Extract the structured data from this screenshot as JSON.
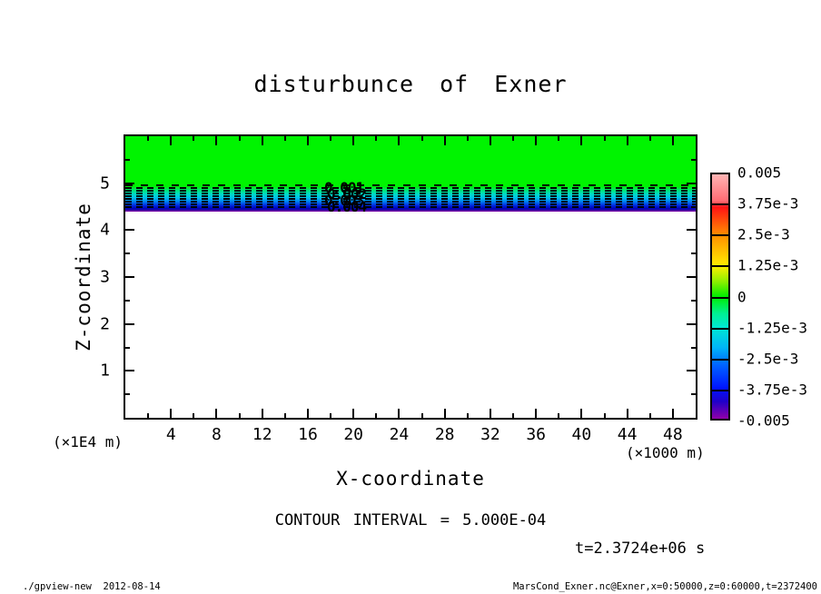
{
  "title": "disturbunce of Exner",
  "axes": {
    "x_label": "X-coordinate",
    "x_unit": "(×1000 m)",
    "x_ticks": [
      "4",
      "8",
      "12",
      "16",
      "20",
      "24",
      "28",
      "32",
      "36",
      "40",
      "44",
      "48"
    ],
    "y_label": "Z-coordinate",
    "y_unit": "(×1E4 m)",
    "y_ticks": [
      "5",
      "4",
      "3",
      "2",
      "1"
    ]
  },
  "colorbar": {
    "labels": [
      "0.005",
      "3.75e-3",
      "2.5e-3",
      "1.25e-3",
      "0",
      "-1.25e-3",
      "-2.5e-3",
      "-3.75e-3",
      "-0.005"
    ]
  },
  "contour_labels": [
    "0.001",
    "0.002",
    "0.003",
    "0.004"
  ],
  "annotations": {
    "contour_interval_text": "CONTOUR INTERVAL = 5.000E-04",
    "time_text": "t=2.3724e+06 s"
  },
  "footer": {
    "left": "./gpview-new  2012-08-14",
    "right": "MarsCond_Exner.nc@Exner,x=0:50000,z=0:60000,t=2372400"
  },
  "chart_data": {
    "type": "heatmap",
    "title": "disturbunce of Exner",
    "xlabel": "X-coordinate",
    "x_unit": "(×1000 m)",
    "xlim": [
      0,
      50
    ],
    "ylabel": "Z-coordinate",
    "y_unit": "(×1E4 m)",
    "ylim": [
      0,
      6
    ],
    "colorbar_levels": [
      0.005,
      0.00375,
      0.0025,
      0.00125,
      0,
      -0.00125,
      -0.0025,
      -0.00375,
      -0.005
    ],
    "colorbar_colors_top_to_bottom": [
      "#ffb4b4",
      "#ff1414",
      "#ff9000",
      "#ffee00",
      "#00ee00",
      "#00e8d2",
      "#00b4f8",
      "#0014ff",
      "#9000a8"
    ],
    "contour_interval": 0.0005,
    "contour_line_labels": [
      0.001,
      0.002,
      0.003,
      0.004
    ],
    "contour_style": "dashed (negative values), 9 lines stacked between z=4.55 and z=4.9 (x1E4 m)",
    "time_seconds": 2372400,
    "field_profile": [
      {
        "z_range_x1E4_m": [
          4.9,
          6.0
        ],
        "value": 0,
        "fill": "#00f400"
      },
      {
        "z_range_x1E4_m": [
          4.55,
          4.9
        ],
        "value": "0 down to -0.005 sharp gradient",
        "fill": "green→cyan→blue→purple"
      },
      {
        "z_range_x1E4_m": [
          0.0,
          4.55
        ],
        "value": "out of range / blank",
        "fill": "#ffffff"
      }
    ],
    "legend_position": "right colorbar",
    "grid": false
  }
}
